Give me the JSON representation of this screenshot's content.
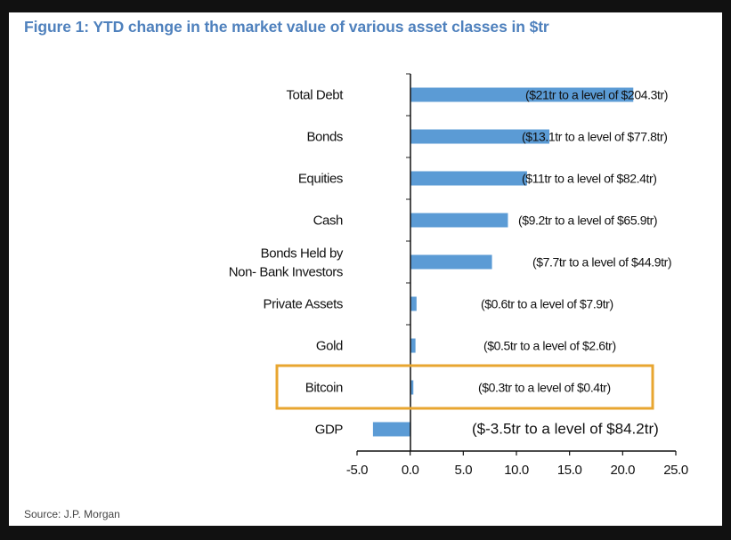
{
  "chart_data": {
    "type": "bar",
    "orientation": "horizontal",
    "title": "Figure 1: YTD change in the market value of various asset classes in $tr",
    "categories": [
      "Total Debt",
      "Bonds",
      "Equities",
      "Cash",
      "Bonds Held by\nNon- Bank Investors",
      "Private Assets",
      "Gold",
      "Bitcoin",
      "GDP"
    ],
    "values": [
      21,
      13.1,
      11,
      9.2,
      7.7,
      0.6,
      0.5,
      0.3,
      -3.5
    ],
    "data_labels": [
      "($21tr to a level of $204.3tr)",
      "($13.1tr to a level of $77.8tr)",
      "($11tr to a level of $82.4tr)",
      "($9.2tr to a level of $65.9tr)",
      "($7.7tr to a level of $44.9tr)",
      "($0.6tr to a level of $7.9tr)",
      "($0.5tr to a level of $2.6tr)",
      "($0.3tr to a level of $0.4tr)",
      "($-3.5tr to a level of $84.2tr)"
    ],
    "xlim": [
      -5,
      25
    ],
    "xticks": [
      "-5.0",
      "0.0",
      "5.0",
      "10.0",
      "15.0",
      "20.0",
      "25.0"
    ],
    "xlabel": "",
    "ylabel": "",
    "grid": false,
    "bar_color": "#5b9bd5",
    "highlighted_category": "Bitcoin",
    "highlight_color": "#e8a630",
    "source": "Source: J.P. Morgan"
  }
}
